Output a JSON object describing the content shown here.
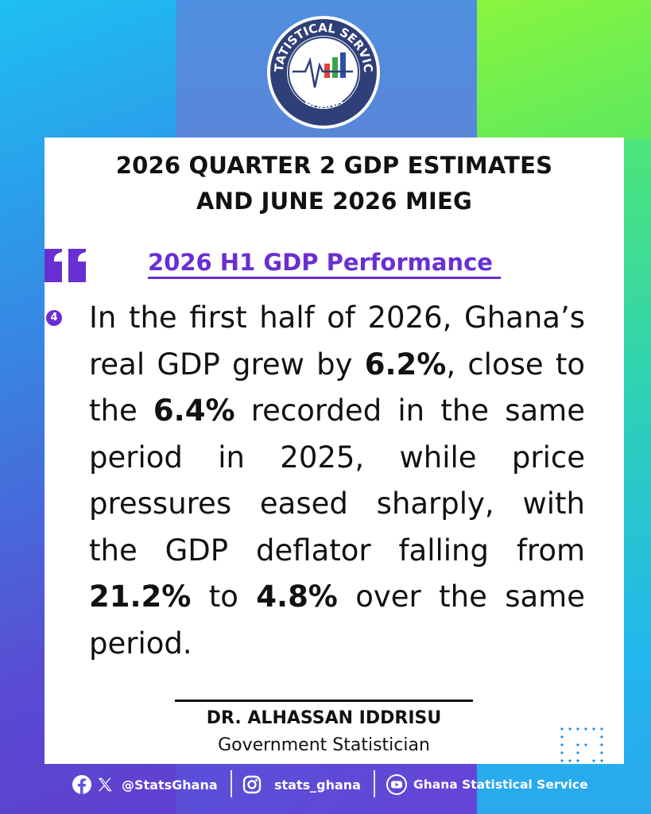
{
  "logo": {
    "arc_top": "STATISTICAL SERVICE",
    "arc_bottom": "GHANA",
    "colors": {
      "ring": "#2f3f78",
      "inner": "#ffffff",
      "bars": [
        "#e04040",
        "#3aa64a",
        "#2a4fa8"
      ]
    }
  },
  "header": {
    "title_line1": "2026 QUARTER 2 GDP ESTIMATES",
    "title_line2": "AND JUNE 2026 MIEG"
  },
  "quote": {
    "icon": "quote-icon",
    "subheading": "2026 H1 GDP Performance "
  },
  "point": {
    "number": "4",
    "t1": "In the first half of 2026, Ghana’s real GDP grew by ",
    "v1": "6.2%",
    "t2": ", close to the ",
    "v2": "6.4%",
    "t3": " recorded in the same period in 2025, while price pressures eased sharply, with the GDP deflator falling from ",
    "v3": "21.2%",
    "t4": " to ",
    "v4": "4.8%",
    "t5": " over the same period."
  },
  "signature": {
    "name": "DR. ALHASSAN IDDRISU",
    "role": "Government Statistician"
  },
  "footer": {
    "handle1": "@StatsGhana",
    "handle2": "stats_ghana",
    "handle3": "Ghana Statistical Service"
  },
  "colors": {
    "accent": "#6a2fd0",
    "card": "#ffffff"
  }
}
